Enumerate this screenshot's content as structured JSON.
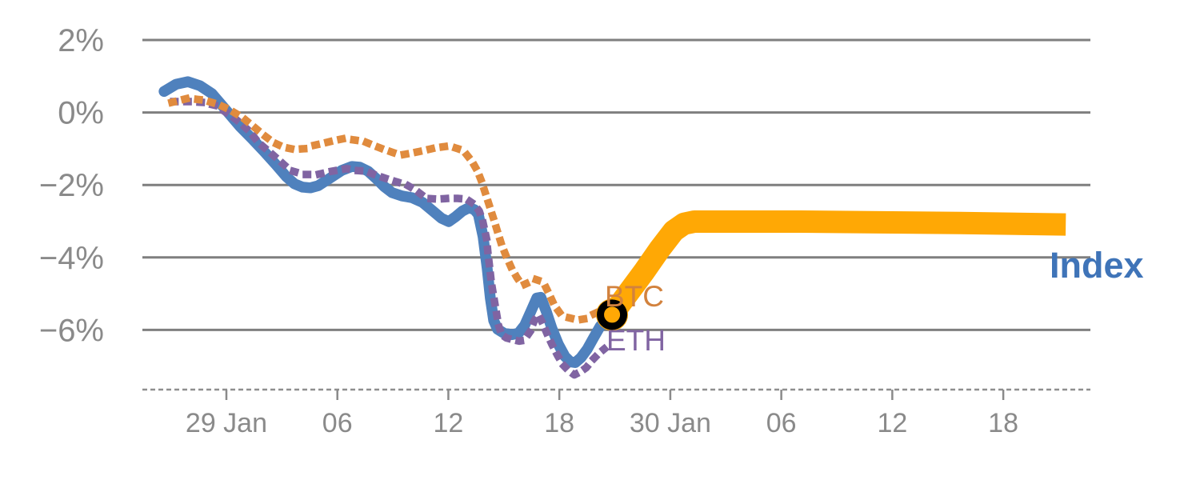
{
  "page": {
    "background": "#FFFFFF"
  },
  "chart_data": {
    "type": "line",
    "title": "",
    "x_axis": {
      "unit": "hours since 29 Jan 00:00",
      "range": [
        -4.54,
        46.71
      ],
      "tick_interval_hours": 6,
      "ticks": [
        {
          "h": 0,
          "label": "29 Jan"
        },
        {
          "h": 6,
          "label": "06"
        },
        {
          "h": 12,
          "label": "12"
        },
        {
          "h": 18,
          "label": "18"
        },
        {
          "h": 24,
          "label": "30 Jan"
        },
        {
          "h": 30,
          "label": "06"
        },
        {
          "h": 36,
          "label": "12"
        },
        {
          "h": 42,
          "label": "18"
        }
      ],
      "axis_style": "dashed",
      "axis_color": "#8F8F8F"
    },
    "y_axis": {
      "unit": "%",
      "range": [
        -7.9,
        2.4
      ],
      "ticks": [
        {
          "v": 2,
          "label": "2%"
        },
        {
          "v": 0,
          "label": "0%"
        },
        {
          "v": -2,
          "label": "−2%"
        },
        {
          "v": -4,
          "label": "−4%"
        },
        {
          "v": -6,
          "label": "−6%"
        }
      ],
      "gridlines": true,
      "grid_color": "#7F7F7F",
      "text_color": "#8A8A8A"
    },
    "series": [
      {
        "name": "Index",
        "color": "#4F81BD",
        "style": "solid",
        "stroke_width": 13.5,
        "points": [
          [
            -3.37,
            0.58
          ],
          [
            -2.72,
            0.78
          ],
          [
            -2.08,
            0.85
          ],
          [
            -1.43,
            0.74
          ],
          [
            -0.78,
            0.52
          ],
          [
            -0.04,
            0.08
          ],
          [
            0.74,
            -0.39
          ],
          [
            1.38,
            -0.72
          ],
          [
            2.03,
            -1.07
          ],
          [
            2.68,
            -1.44
          ],
          [
            3.24,
            -1.77
          ],
          [
            3.68,
            -1.97
          ],
          [
            4.11,
            -2.06
          ],
          [
            4.54,
            -2.08
          ],
          [
            4.97,
            -2.02
          ],
          [
            5.58,
            -1.82
          ],
          [
            6.23,
            -1.6
          ],
          [
            6.79,
            -1.49
          ],
          [
            7.22,
            -1.51
          ],
          [
            7.66,
            -1.62
          ],
          [
            8.09,
            -1.82
          ],
          [
            8.52,
            -2.04
          ],
          [
            8.95,
            -2.21
          ],
          [
            9.47,
            -2.3
          ],
          [
            10.03,
            -2.35
          ],
          [
            10.6,
            -2.48
          ],
          [
            11.12,
            -2.7
          ],
          [
            11.63,
            -2.92
          ],
          [
            12.02,
            -3.01
          ],
          [
            12.41,
            -2.87
          ],
          [
            12.76,
            -2.72
          ],
          [
            13.11,
            -2.63
          ],
          [
            13.41,
            -2.68
          ],
          [
            13.62,
            -2.81
          ],
          [
            13.88,
            -3.43
          ],
          [
            14.1,
            -4.31
          ],
          [
            14.27,
            -5.12
          ],
          [
            14.45,
            -5.74
          ],
          [
            14.66,
            -5.98
          ],
          [
            15.01,
            -6.09
          ],
          [
            15.44,
            -6.13
          ],
          [
            15.79,
            -6.09
          ],
          [
            16.13,
            -5.87
          ],
          [
            16.48,
            -5.47
          ],
          [
            16.78,
            -5.12
          ],
          [
            17.0,
            -5.1
          ],
          [
            17.3,
            -5.5
          ],
          [
            17.6,
            -5.96
          ],
          [
            17.95,
            -6.4
          ],
          [
            18.3,
            -6.73
          ],
          [
            18.6,
            -6.88
          ],
          [
            18.86,
            -6.9
          ],
          [
            19.16,
            -6.77
          ],
          [
            19.51,
            -6.53
          ],
          [
            19.85,
            -6.22
          ],
          [
            20.2,
            -5.91
          ],
          [
            20.5,
            -5.72
          ],
          [
            20.85,
            -5.58
          ]
        ]
      },
      {
        "name": "BTC",
        "color": "#E08B3E",
        "style": "dotted",
        "stroke_width": 9.5,
        "points": [
          [
            -2.94,
            0.28
          ],
          [
            -2.08,
            0.39
          ],
          [
            -1.21,
            0.34
          ],
          [
            -0.48,
            0.23
          ],
          [
            0.17,
            0.08
          ],
          [
            0.87,
            -0.14
          ],
          [
            1.47,
            -0.39
          ],
          [
            2.03,
            -0.63
          ],
          [
            2.55,
            -0.83
          ],
          [
            3.11,
            -0.96
          ],
          [
            3.68,
            -1.02
          ],
          [
            4.2,
            -1.0
          ],
          [
            4.71,
            -0.91
          ],
          [
            5.23,
            -0.85
          ],
          [
            5.8,
            -0.78
          ],
          [
            6.36,
            -0.72
          ],
          [
            6.92,
            -0.76
          ],
          [
            7.44,
            -0.8
          ],
          [
            7.96,
            -0.91
          ],
          [
            8.52,
            -1.02
          ],
          [
            9.04,
            -1.11
          ],
          [
            9.6,
            -1.16
          ],
          [
            10.12,
            -1.11
          ],
          [
            10.68,
            -1.05
          ],
          [
            11.25,
            -0.98
          ],
          [
            11.81,
            -0.94
          ],
          [
            12.28,
            -0.96
          ],
          [
            12.63,
            -1.02
          ],
          [
            12.98,
            -1.16
          ],
          [
            13.28,
            -1.35
          ],
          [
            13.58,
            -1.62
          ],
          [
            13.8,
            -1.91
          ],
          [
            14.01,
            -2.24
          ],
          [
            14.23,
            -2.59
          ],
          [
            14.45,
            -2.94
          ],
          [
            14.66,
            -3.29
          ],
          [
            14.88,
            -3.65
          ],
          [
            15.14,
            -3.98
          ],
          [
            15.4,
            -4.28
          ],
          [
            15.7,
            -4.55
          ],
          [
            16.0,
            -4.77
          ],
          [
            16.31,
            -4.7
          ],
          [
            16.61,
            -4.59
          ],
          [
            16.91,
            -4.64
          ],
          [
            17.22,
            -4.77
          ],
          [
            17.47,
            -5.03
          ],
          [
            17.73,
            -5.32
          ],
          [
            18.04,
            -5.54
          ],
          [
            18.38,
            -5.65
          ],
          [
            18.73,
            -5.69
          ],
          [
            19.07,
            -5.72
          ],
          [
            19.42,
            -5.69
          ],
          [
            19.77,
            -5.58
          ],
          [
            20.11,
            -5.5
          ],
          [
            20.46,
            -5.52
          ],
          [
            20.8,
            -5.56
          ]
        ]
      },
      {
        "name": "ETH",
        "color": "#8064A2",
        "style": "dotted",
        "stroke_width": 9.5,
        "points": [
          [
            -2.85,
            0.3
          ],
          [
            -1.99,
            0.3
          ],
          [
            -1.3,
            0.28
          ],
          [
            -0.56,
            0.19
          ],
          [
            0.22,
            -0.08
          ],
          [
            0.74,
            -0.28
          ],
          [
            1.25,
            -0.52
          ],
          [
            1.73,
            -0.83
          ],
          [
            2.38,
            -1.11
          ],
          [
            2.98,
            -1.38
          ],
          [
            3.46,
            -1.6
          ],
          [
            4.2,
            -1.71
          ],
          [
            4.93,
            -1.71
          ],
          [
            5.71,
            -1.62
          ],
          [
            6.49,
            -1.55
          ],
          [
            7.01,
            -1.6
          ],
          [
            7.53,
            -1.62
          ],
          [
            8.09,
            -1.73
          ],
          [
            8.74,
            -1.84
          ],
          [
            9.3,
            -1.93
          ],
          [
            9.82,
            -2.02
          ],
          [
            10.25,
            -2.15
          ],
          [
            10.81,
            -2.37
          ],
          [
            11.42,
            -2.39
          ],
          [
            11.98,
            -2.37
          ],
          [
            12.5,
            -2.37
          ],
          [
            12.98,
            -2.39
          ],
          [
            13.36,
            -2.52
          ],
          [
            13.67,
            -2.72
          ],
          [
            13.88,
            -3.05
          ],
          [
            14.06,
            -3.47
          ],
          [
            14.14,
            -3.87
          ],
          [
            14.23,
            -4.26
          ],
          [
            14.32,
            -4.68
          ],
          [
            14.45,
            -5.08
          ],
          [
            14.58,
            -5.47
          ],
          [
            14.71,
            -5.87
          ],
          [
            14.88,
            -6.13
          ],
          [
            15.14,
            -6.22
          ],
          [
            15.48,
            -6.27
          ],
          [
            15.83,
            -6.31
          ],
          [
            16.09,
            -6.29
          ],
          [
            16.39,
            -6.07
          ],
          [
            16.65,
            -5.74
          ],
          [
            16.87,
            -5.58
          ],
          [
            17.08,
            -5.8
          ],
          [
            17.34,
            -6.11
          ],
          [
            17.6,
            -6.4
          ],
          [
            17.91,
            -6.71
          ],
          [
            18.21,
            -6.97
          ],
          [
            18.51,
            -7.13
          ],
          [
            18.81,
            -7.24
          ],
          [
            19.16,
            -7.15
          ],
          [
            19.46,
            -7.04
          ],
          [
            19.77,
            -6.84
          ],
          [
            20.11,
            -6.66
          ],
          [
            20.42,
            -6.53
          ]
        ]
      },
      {
        "name": "Index forecast",
        "color": "#FFA805",
        "style": "solid",
        "stroke_width": 28,
        "points": [
          [
            20.85,
            -5.58
          ],
          [
            21.71,
            -4.99
          ],
          [
            22.58,
            -4.39
          ],
          [
            23.44,
            -3.76
          ],
          [
            24.18,
            -3.27
          ],
          [
            24.74,
            -3.07
          ],
          [
            25.3,
            -3.01
          ],
          [
            26.69,
            -3.01
          ],
          [
            31.01,
            -3.01
          ],
          [
            35.34,
            -3.03
          ],
          [
            39.67,
            -3.05
          ],
          [
            45.38,
            -3.09
          ]
        ]
      }
    ],
    "marker": {
      "h": 20.85,
      "v": -5.58,
      "shape": "open-circle",
      "ring_color": "#000000",
      "halo_color": "#FFA805"
    },
    "labels": {
      "btc": {
        "text": "BTC",
        "color": "#D2823E"
      },
      "eth": {
        "text": "ETH",
        "color": "#8064A2"
      },
      "index": {
        "text": "Index",
        "color": "#3F74B8"
      }
    },
    "legend_position": "inline-end-of-line"
  }
}
